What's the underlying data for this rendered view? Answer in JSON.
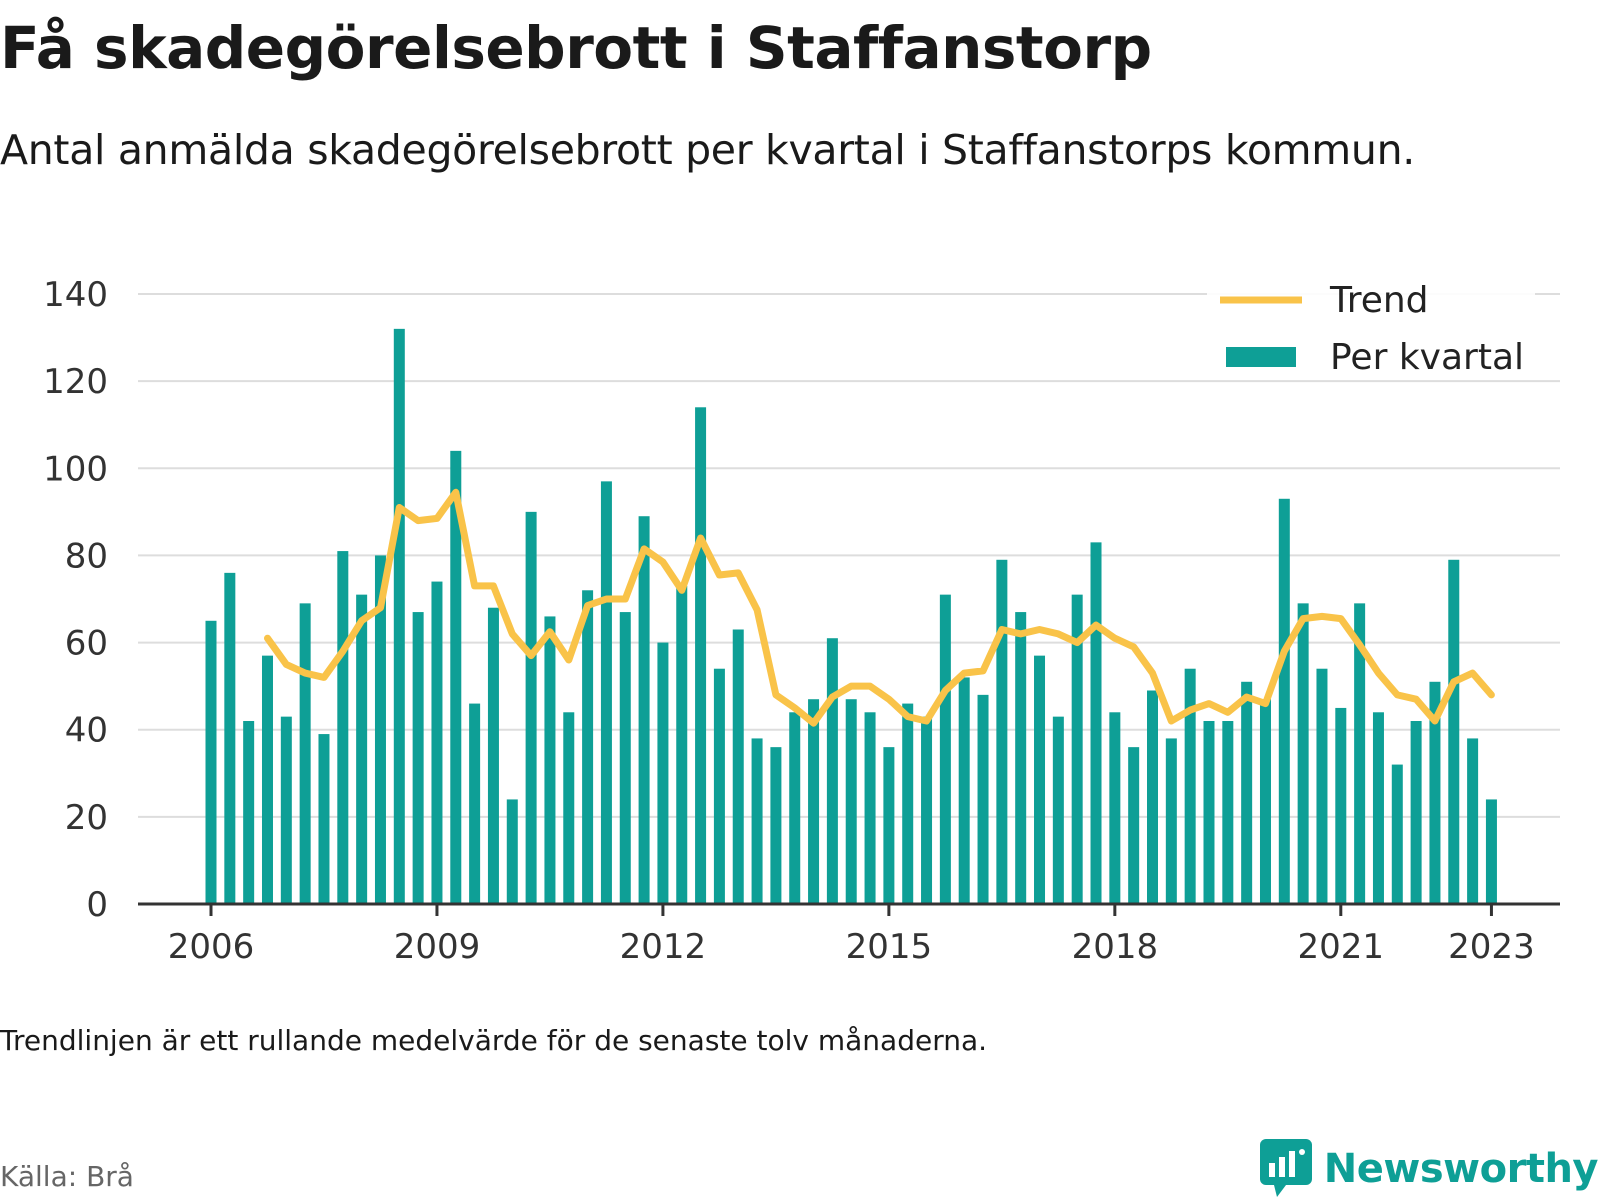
{
  "title": "Få skadegörelsebrott i Staffanstorp",
  "subtitle": "Antal anmälda skadegörelsebrott per kvartal i Staffanstorps kommun.",
  "footnote": "Trendlinjen är ett rullande medelvärde för de senaste tolv månaderna.",
  "source": "Källa: Brå",
  "brand": {
    "name": "Newsworthy",
    "icon": "newsworthy-logo-icon"
  },
  "colors": {
    "bar": "#0e9f96",
    "trend": "#f9c349",
    "grid": "#dddddd",
    "axis": "#333333",
    "text": "#333333"
  },
  "chart_data": {
    "type": "bar",
    "quarters_start": "2006 Q1",
    "x_ticks": [
      "2006",
      "2009",
      "2012",
      "2015",
      "2018",
      "2021",
      "2023"
    ],
    "ylim": [
      0,
      140
    ],
    "y_ticks": [
      0,
      20,
      40,
      60,
      80,
      100,
      120,
      140
    ],
    "grid": true,
    "legend_position": "top-right",
    "series": [
      {
        "name": "Per kvartal",
        "kind": "bar",
        "values": [
          65,
          76,
          42,
          57,
          43,
          69,
          39,
          81,
          71,
          80,
          132,
          67,
          74,
          104,
          46,
          68,
          24,
          90,
          66,
          44,
          72,
          97,
          67,
          89,
          60,
          73,
          114,
          54,
          63,
          38,
          36,
          44,
          47,
          61,
          47,
          44,
          36,
          46,
          43,
          71,
          52,
          48,
          79,
          67,
          57,
          43,
          71,
          83,
          44,
          36,
          49,
          38,
          54,
          42,
          42,
          51,
          47,
          93,
          69,
          54,
          45,
          69,
          44,
          32,
          42,
          51,
          79,
          38,
          24
        ]
      },
      {
        "name": "Trend",
        "kind": "line",
        "values": [
          null,
          null,
          null,
          61,
          55,
          53,
          52,
          58,
          65,
          68,
          91,
          88,
          88.5,
          94.5,
          73,
          73,
          62,
          57,
          62.5,
          56,
          68.5,
          70,
          70,
          81.5,
          78.5,
          72,
          84,
          75.5,
          76,
          67.5,
          48,
          45,
          41.5,
          47.5,
          50,
          50,
          47,
          43,
          42,
          49,
          53,
          53.5,
          63,
          62,
          63,
          62,
          60,
          64,
          61,
          59,
          53,
          42,
          44.5,
          46,
          44,
          47.5,
          46,
          58,
          65.5,
          66,
          65.5,
          59.5,
          53,
          48,
          47,
          42,
          51,
          53,
          48
        ]
      }
    ]
  }
}
